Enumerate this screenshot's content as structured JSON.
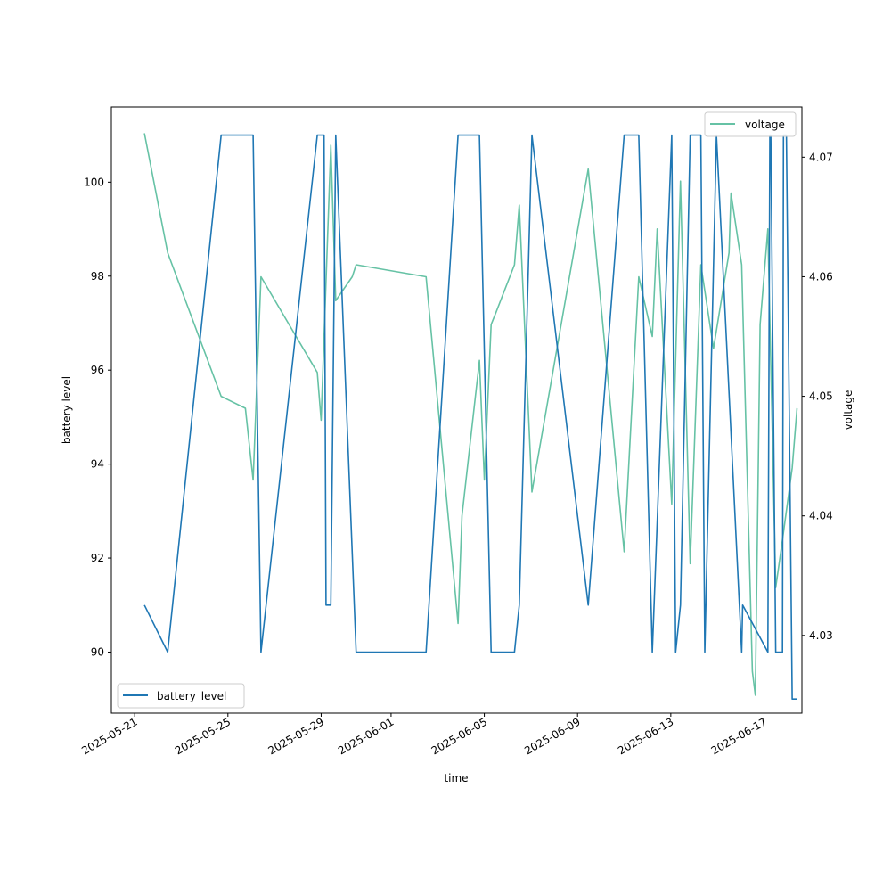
{
  "chart_data": {
    "type": "line",
    "xlabel": "time",
    "ylabel": "battery level",
    "y2label": "voltage",
    "x_is_date": true,
    "xlim": [
      "2025-05-20T00:00",
      "2025-06-18T15:00"
    ],
    "ylim": [
      88.7,
      101.6
    ],
    "y2lim": [
      4.0235,
      4.0742
    ],
    "x_ticks": [
      "2025-05-21",
      "2025-05-25",
      "2025-05-29",
      "2025-06-01",
      "2025-06-05",
      "2025-06-09",
      "2025-06-13",
      "2025-06-17"
    ],
    "y_ticks": [
      90,
      92,
      94,
      96,
      98,
      100
    ],
    "y2_ticks": [
      4.03,
      4.04,
      4.05,
      4.06,
      4.07
    ],
    "grid": false,
    "legend": [
      {
        "name": "battery_level",
        "placement": "lower-left"
      },
      {
        "name": "voltage",
        "placement": "upper-right"
      }
    ],
    "colors": {
      "battery_level": "#1f77b4",
      "voltage": "#66c2a5"
    },
    "series": [
      {
        "name": "battery_level",
        "axis": "left",
        "points": [
          [
            "2025-05-21T10:00",
            91
          ],
          [
            "2025-05-22T10:00",
            90
          ],
          [
            "2025-05-24T17:00",
            101
          ],
          [
            "2025-05-26T02:00",
            101
          ],
          [
            "2025-05-26T10:00",
            90
          ],
          [
            "2025-05-28T20:00",
            101
          ],
          [
            "2025-05-29T03:00",
            101
          ],
          [
            "2025-05-29T05:00",
            91
          ],
          [
            "2025-05-29T10:00",
            91
          ],
          [
            "2025-05-29T15:00",
            101
          ],
          [
            "2025-05-30T12:00",
            90
          ],
          [
            "2025-06-02T12:00",
            90
          ],
          [
            "2025-06-03T21:00",
            101
          ],
          [
            "2025-06-04T19:00",
            101
          ],
          [
            "2025-06-05T07:00",
            90
          ],
          [
            "2025-06-06T07:00",
            90
          ],
          [
            "2025-06-06T12:00",
            91
          ],
          [
            "2025-06-07T01:00",
            101
          ],
          [
            "2025-06-09T11:00",
            91
          ],
          [
            "2025-06-11T00:00",
            101
          ],
          [
            "2025-06-11T15:00",
            101
          ],
          [
            "2025-06-12T05:00",
            90
          ],
          [
            "2025-06-13T01:00",
            101
          ],
          [
            "2025-06-13T05:00",
            90
          ],
          [
            "2025-06-13T10:00",
            91
          ],
          [
            "2025-06-13T20:00",
            101
          ],
          [
            "2025-06-14T07:00",
            101
          ],
          [
            "2025-06-14T11:00",
            90
          ],
          [
            "2025-06-14T23:00",
            101
          ],
          [
            "2025-06-16T01:00",
            90
          ],
          [
            "2025-06-16T02:00",
            91
          ],
          [
            "2025-06-17T04:00",
            90
          ],
          [
            "2025-06-17T06:00",
            101
          ],
          [
            "2025-06-17T07:00",
            101
          ],
          [
            "2025-06-17T12:00",
            90
          ],
          [
            "2025-06-17T19:00",
            90
          ],
          [
            "2025-06-17T20:00",
            101
          ],
          [
            "2025-06-17T23:00",
            101
          ],
          [
            "2025-06-18T05:00",
            89
          ],
          [
            "2025-06-18T10:00",
            89
          ]
        ]
      },
      {
        "name": "voltage",
        "axis": "right",
        "points": [
          [
            "2025-05-21T10:00",
            4.072
          ],
          [
            "2025-05-22T10:00",
            4.062
          ],
          [
            "2025-05-24T17:00",
            4.05
          ],
          [
            "2025-05-25T18:00",
            4.049
          ],
          [
            "2025-05-26T02:00",
            4.043
          ],
          [
            "2025-05-26T10:00",
            4.06
          ],
          [
            "2025-05-28T20:00",
            4.052
          ],
          [
            "2025-05-29T00:00",
            4.048
          ],
          [
            "2025-05-29T10:00",
            4.071
          ],
          [
            "2025-05-29T15:00",
            4.058
          ],
          [
            "2025-05-30T08:00",
            4.06
          ],
          [
            "2025-05-30T12:00",
            4.061
          ],
          [
            "2025-06-02T12:00",
            4.06
          ],
          [
            "2025-06-03T21:00",
            4.031
          ],
          [
            "2025-06-04T01:00",
            4.04
          ],
          [
            "2025-06-04T19:00",
            4.053
          ],
          [
            "2025-06-05T00:00",
            4.043
          ],
          [
            "2025-06-05T07:00",
            4.056
          ],
          [
            "2025-06-05T12:00",
            4.057
          ],
          [
            "2025-06-06T07:00",
            4.061
          ],
          [
            "2025-06-06T12:00",
            4.066
          ],
          [
            "2025-06-07T01:00",
            4.042
          ],
          [
            "2025-06-09T11:00",
            4.069
          ],
          [
            "2025-06-11T00:00",
            4.037
          ],
          [
            "2025-06-11T15:00",
            4.06
          ],
          [
            "2025-06-12T05:00",
            4.055
          ],
          [
            "2025-06-12T10:00",
            4.064
          ],
          [
            "2025-06-13T01:00",
            4.041
          ],
          [
            "2025-06-13T10:00",
            4.068
          ],
          [
            "2025-06-13T20:00",
            4.036
          ],
          [
            "2025-06-14T07:00",
            4.061
          ],
          [
            "2025-06-14T20:00",
            4.054
          ],
          [
            "2025-06-15T12:00",
            4.062
          ],
          [
            "2025-06-15T14:00",
            4.067
          ],
          [
            "2025-06-16T01:00",
            4.061
          ],
          [
            "2025-06-16T12:00",
            4.027
          ],
          [
            "2025-06-16T15:00",
            4.025
          ],
          [
            "2025-06-16T20:00",
            4.056
          ],
          [
            "2025-06-17T04:00",
            4.064
          ],
          [
            "2025-06-17T12:00",
            4.034
          ],
          [
            "2025-06-17T19:00",
            4.038
          ],
          [
            "2025-06-18T05:00",
            4.044
          ],
          [
            "2025-06-18T10:00",
            4.049
          ]
        ]
      }
    ]
  }
}
